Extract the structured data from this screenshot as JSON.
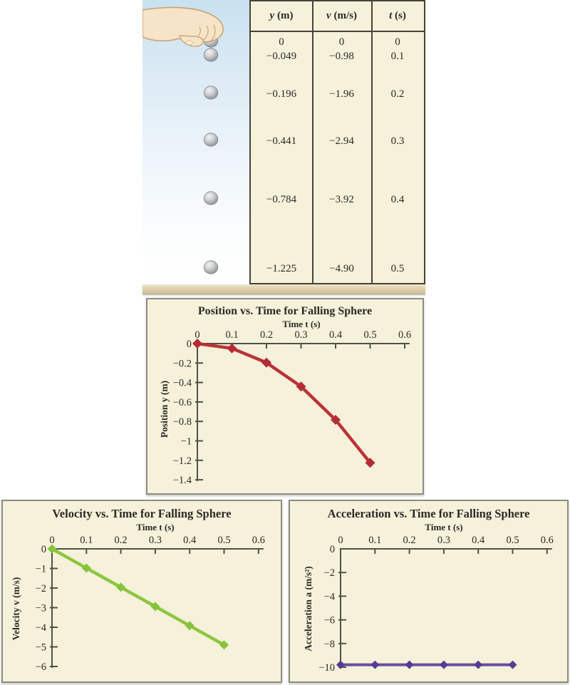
{
  "illustration": {
    "label": "hand releasing a falling sphere",
    "sphere_count": 6
  },
  "table": {
    "headers": [
      {
        "symbol": "y",
        "unit": "(m)"
      },
      {
        "symbol": "v",
        "unit": "(m/s)"
      },
      {
        "symbol": "t",
        "unit": "(s)"
      }
    ],
    "rows": [
      {
        "y": "0",
        "v": "0",
        "t": "0"
      },
      {
        "y": "−0.049",
        "v": "−0.98",
        "t": "0.1"
      },
      {
        "y": "−0.196",
        "v": "−1.96",
        "t": "0.2"
      },
      {
        "y": "−0.441",
        "v": "−2.94",
        "t": "0.3"
      },
      {
        "y": "−0.784",
        "v": "−3.92",
        "t": "0.4"
      },
      {
        "y": "−1.225",
        "v": "−4.90",
        "t": "0.5"
      }
    ]
  },
  "colors": {
    "panel_bg": "#f6f1da",
    "panel_border": "#8e8c80",
    "table_border": "#454338",
    "axis": "#4e5248",
    "text": "#2b2a26",
    "position_red": "#bc3239",
    "velocity_green": "#8dc63f",
    "acceleration_purple": "#6a4fa1"
  },
  "chart_data": [
    {
      "id": "position",
      "type": "line",
      "title": "Position vs. Time for Falling Sphere",
      "xlabel": "Time t (s)",
      "ylabel": "Position y (m)",
      "x": [
        0,
        0.1,
        0.2,
        0.3,
        0.4,
        0.5
      ],
      "y": [
        0,
        -0.049,
        -0.196,
        -0.441,
        -0.784,
        -1.225
      ],
      "xticks": [
        0,
        0.1,
        0.2,
        0.3,
        0.4,
        0.5,
        0.6
      ],
      "yticks": [
        0,
        -0.2,
        -0.4,
        -0.6,
        -0.8,
        -1,
        -1.2,
        -1.4
      ],
      "xlim": [
        0,
        0.6
      ],
      "ylim": [
        -1.4,
        0
      ],
      "grid": false,
      "line_color": "#bc3239",
      "marker_color": "#b42d36",
      "line_width": 4.5,
      "marker_size": 7
    },
    {
      "id": "velocity",
      "type": "line",
      "title": "Velocity vs. Time for Falling Sphere",
      "xlabel": "Time t (s)",
      "ylabel": "Velocity v (m/s)",
      "x": [
        0,
        0.1,
        0.2,
        0.3,
        0.4,
        0.5
      ],
      "y": [
        0,
        -0.98,
        -1.96,
        -2.94,
        -3.92,
        -4.9
      ],
      "xticks": [
        0,
        0.1,
        0.2,
        0.3,
        0.4,
        0.5,
        0.6
      ],
      "yticks": [
        0,
        -1,
        -2,
        -3,
        -4,
        -5,
        -6
      ],
      "xlim": [
        0,
        0.6
      ],
      "ylim": [
        -6,
        0
      ],
      "grid": false,
      "line_color": "#8dc63f",
      "marker_color": "#85c43c",
      "line_width": 4.5,
      "marker_size": 6.5
    },
    {
      "id": "acceleration",
      "type": "line",
      "title": "Acceleration vs. Time for Falling Sphere",
      "xlabel": "Time t (s)",
      "ylabel": "Acceleration a (m/s²)",
      "x": [
        0,
        0.1,
        0.2,
        0.3,
        0.4,
        0.5
      ],
      "y": [
        -9.8,
        -9.8,
        -9.8,
        -9.8,
        -9.8,
        -9.8
      ],
      "xticks": [
        0,
        0.1,
        0.2,
        0.3,
        0.4,
        0.5,
        0.6
      ],
      "yticks": [
        0,
        -2,
        -4,
        -6,
        -8,
        -10
      ],
      "xlim": [
        0,
        0.6
      ],
      "ylim": [
        -10,
        0
      ],
      "grid": false,
      "line_color": "#6a4fa1",
      "marker_color": "#553c92",
      "line_width": 4,
      "marker_size": 6
    }
  ]
}
